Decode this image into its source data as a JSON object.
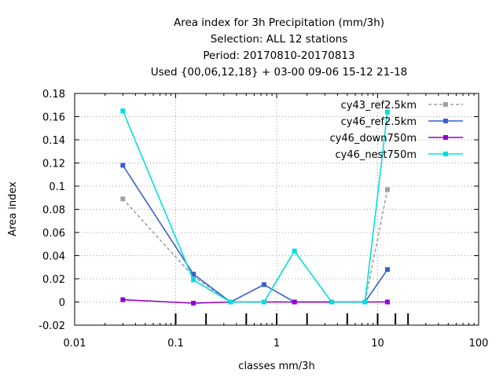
{
  "chart_data": {
    "type": "line",
    "title_lines": [
      "Area index  for 3h Precipitation (mm/3h)",
      "Selection: ALL      12 stations",
      "Period: 20170810-20170813",
      "Used {00,06,12,18} + 03-00 09-06 15-12 21-18"
    ],
    "xlabel": "classes mm/3h",
    "ylabel": "Area index",
    "x_scale": "log",
    "xlim": [
      0.01,
      100
    ],
    "ylim": [
      -0.02,
      0.18
    ],
    "x_ticks": [
      0.01,
      0.1,
      1,
      10,
      100
    ],
    "x_tick_labels": [
      "0.01",
      "0.1",
      "1",
      "10",
      "100"
    ],
    "y_ticks": [
      -0.02,
      0,
      0.02,
      0.04,
      0.06,
      0.08,
      0.1,
      0.12,
      0.14,
      0.16,
      0.18
    ],
    "y_tick_labels": [
      "-0.02",
      "0",
      "0.02",
      "0.04",
      "0.06",
      "0.08",
      "0.1",
      "0.12",
      "0.14",
      "0.16",
      "0.18"
    ],
    "grid": true,
    "legend_position": "top-right",
    "class_markers": [
      0.1,
      0.2,
      0.5,
      1,
      2,
      5,
      10,
      15,
      20
    ],
    "x": [
      0.03,
      0.15,
      0.35,
      0.75,
      1.5,
      3.5,
      7.5,
      12.5
    ],
    "series": [
      {
        "name": "cy43_ref2.5km",
        "color": "#a0a0a0",
        "dashed": true,
        "values": [
          0.089,
          0.022,
          0.0,
          0.0,
          0.0,
          0.0,
          0.0,
          0.097
        ]
      },
      {
        "name": "cy46_ref2.5km",
        "color": "#3a5fcd",
        "dashed": false,
        "values": [
          0.118,
          0.024,
          0.0,
          0.015,
          0.0,
          0.0,
          0.0,
          0.028
        ]
      },
      {
        "name": "cy46_down750m",
        "color": "#9400d3",
        "dashed": false,
        "values": [
          0.002,
          -0.001,
          0.0,
          0.0,
          0.0,
          0.0,
          0.0,
          0.0
        ]
      },
      {
        "name": "cy46_nest750m",
        "color": "#00dfe0",
        "dashed": false,
        "values": [
          0.165,
          0.019,
          0.0,
          0.0,
          0.044,
          0.0,
          0.0,
          0.164
        ]
      }
    ]
  }
}
